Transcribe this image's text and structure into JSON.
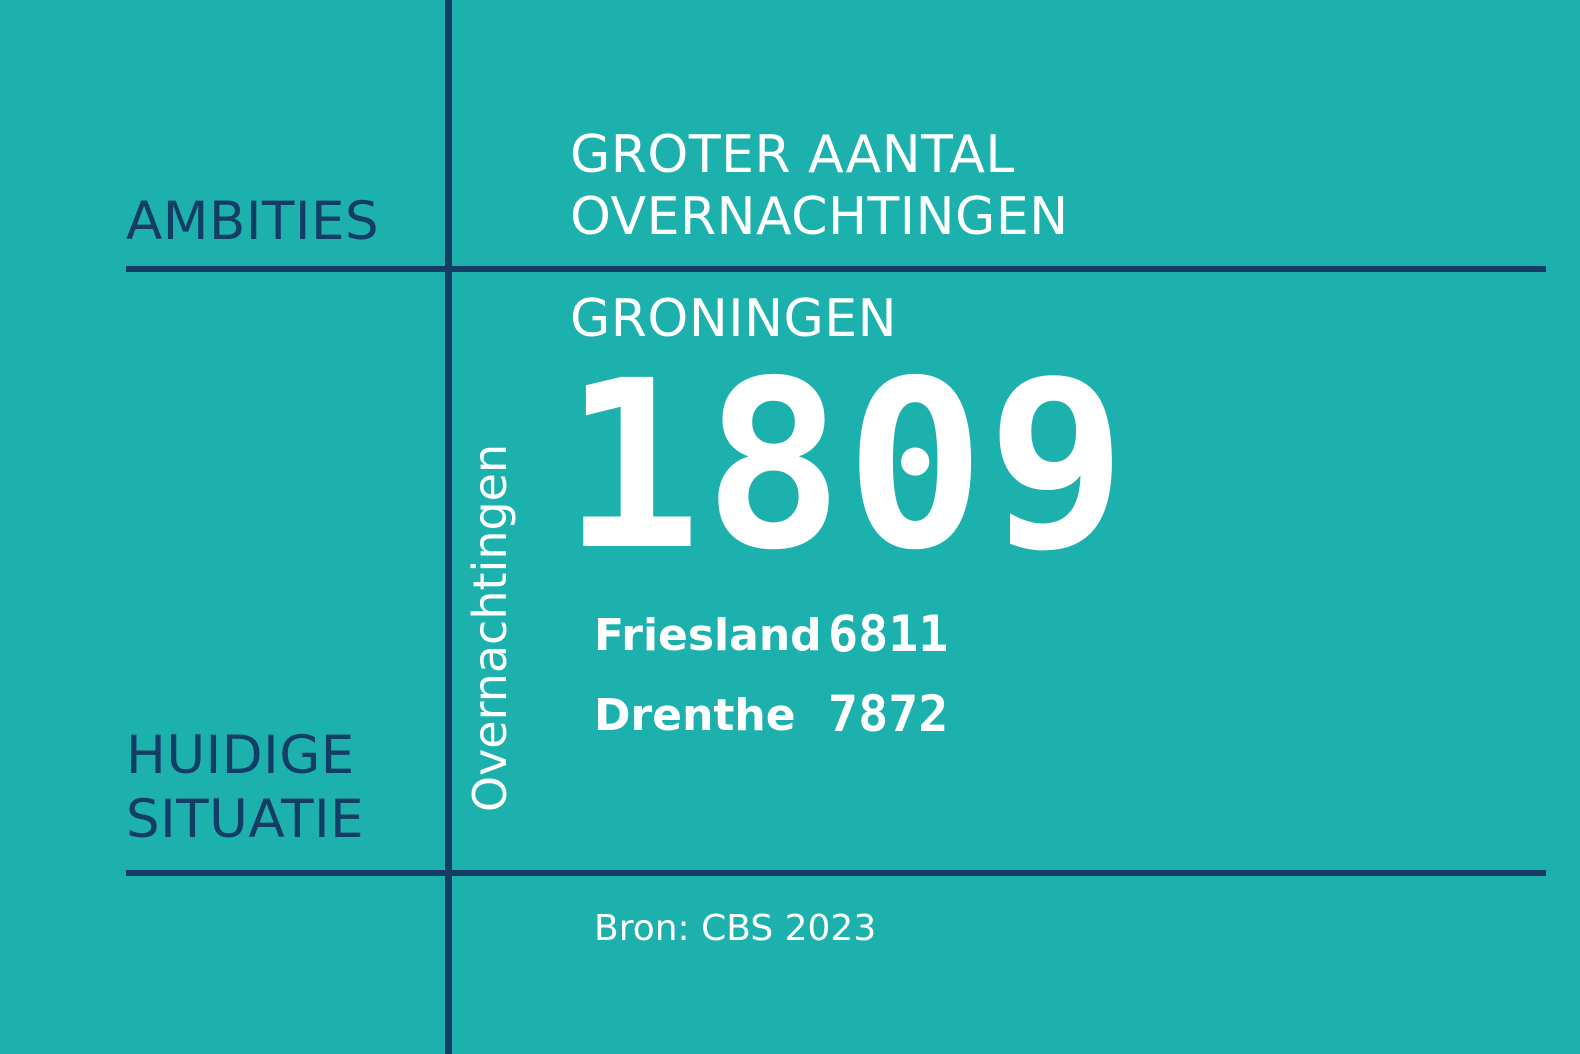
{
  "left_column": {
    "ambities_label": "AMBITIES",
    "huidige_line1": "HUIDIGE",
    "huidige_line2": "SITUATIE"
  },
  "ambitie": {
    "line1": "GROTER AANTAL",
    "line2": "OVERNACHTINGEN"
  },
  "current": {
    "vertical_label": "Overnachtingen",
    "region": "GRONINGEN",
    "value": "1809",
    "comparisons": [
      {
        "name": "Friesland",
        "value": "6811"
      },
      {
        "name": "Drenthe",
        "value": "7872"
      }
    ]
  },
  "source": "Bron: CBS 2023",
  "colors": {
    "background": "#1db1ae",
    "lines_and_labels": "#143d66",
    "text_light": "#ffffff"
  }
}
